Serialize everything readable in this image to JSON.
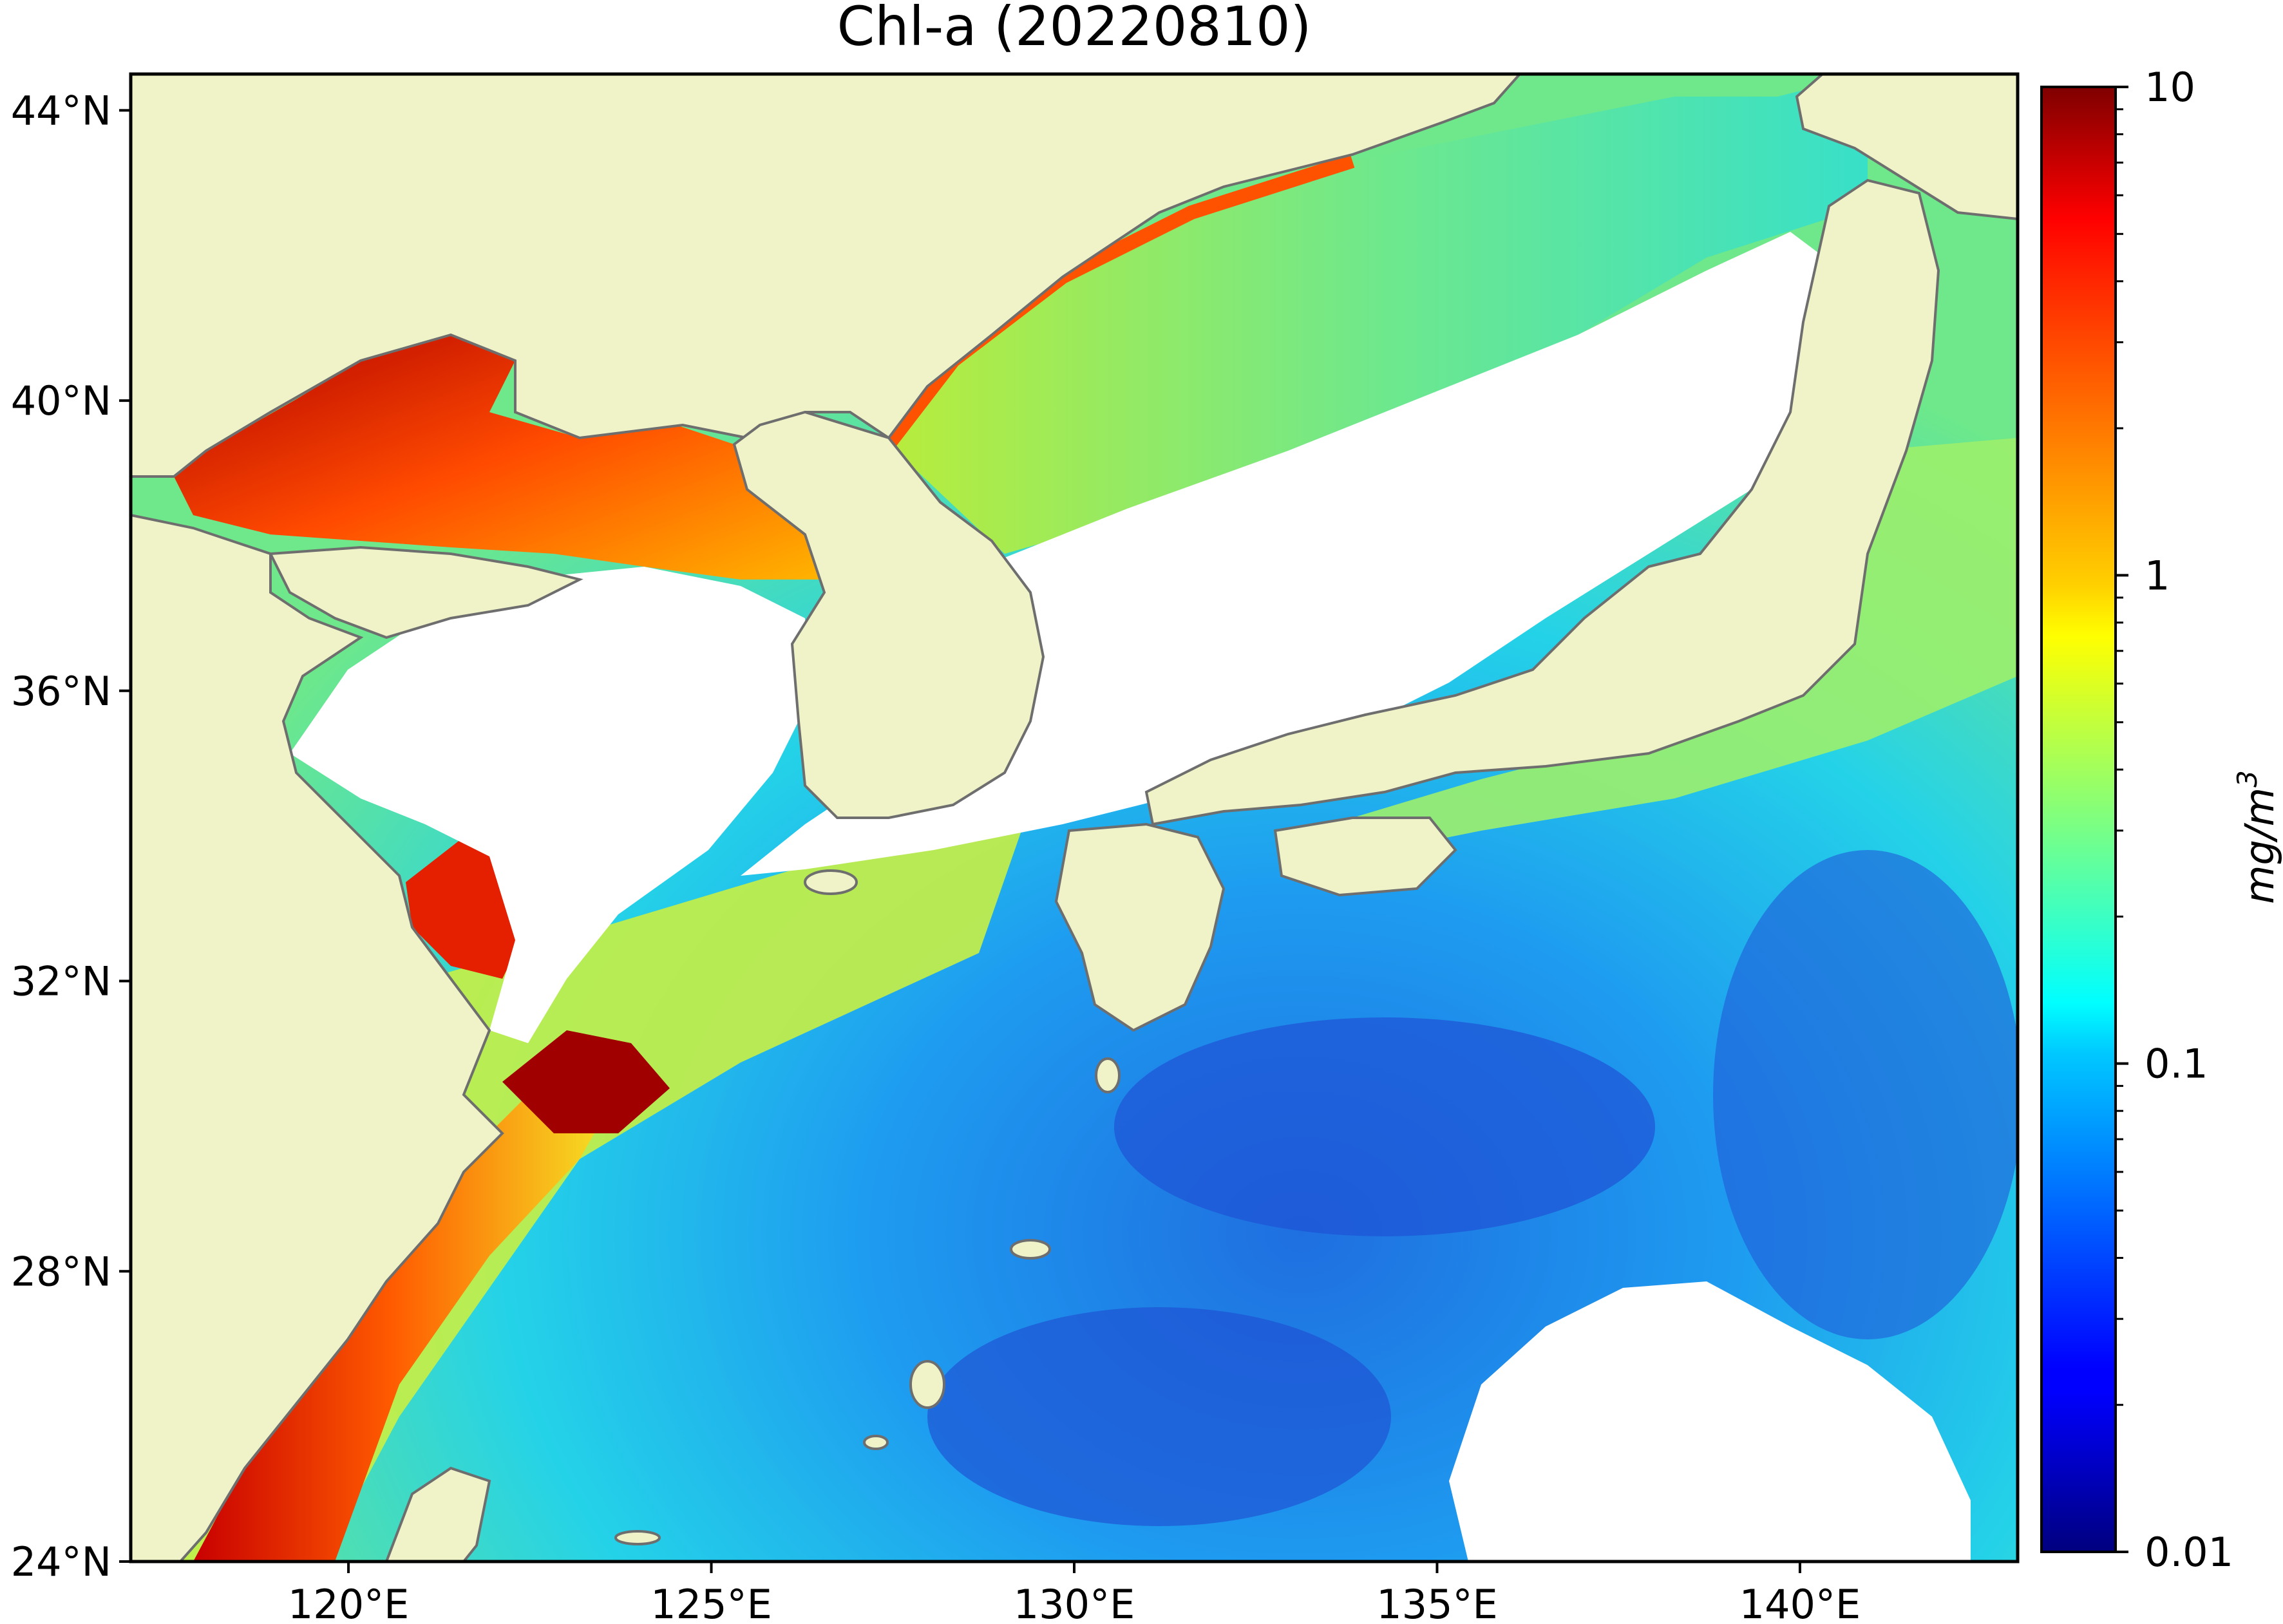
{
  "title": "Chl-a (20220810)",
  "map": {
    "extent": {
      "lon": [
        117,
        143
      ],
      "lat": [
        24,
        44.5
      ]
    },
    "land_color": "#f0f3c8",
    "coast_color": "#6e6e6e",
    "no_data_color": "#ffffff",
    "lat_ticks": [
      {
        "value": 44,
        "label": "44°N"
      },
      {
        "value": 40,
        "label": "40°N"
      },
      {
        "value": 36,
        "label": "36°N"
      },
      {
        "value": 32,
        "label": "32°N"
      },
      {
        "value": 28,
        "label": "28°N"
      },
      {
        "value": 24,
        "label": "24°N"
      }
    ],
    "lon_ticks": [
      {
        "value": 120,
        "label": "120°E"
      },
      {
        "value": 125,
        "label": "125°E"
      },
      {
        "value": 130,
        "label": "130°E"
      },
      {
        "value": 135,
        "label": "135°E"
      },
      {
        "value": 140,
        "label": "140°E"
      }
    ]
  },
  "colorbar": {
    "colormap": "jet",
    "scale": "log",
    "range": [
      0.01,
      10
    ],
    "label": "mg/m3",
    "label_base": "mg/m",
    "label_exp": "3",
    "ticks": [
      {
        "value": 10,
        "label": "10"
      },
      {
        "value": 1,
        "label": "1"
      },
      {
        "value": 0.1,
        "label": "0.1"
      },
      {
        "value": 0.01,
        "label": "0.01"
      }
    ]
  }
}
